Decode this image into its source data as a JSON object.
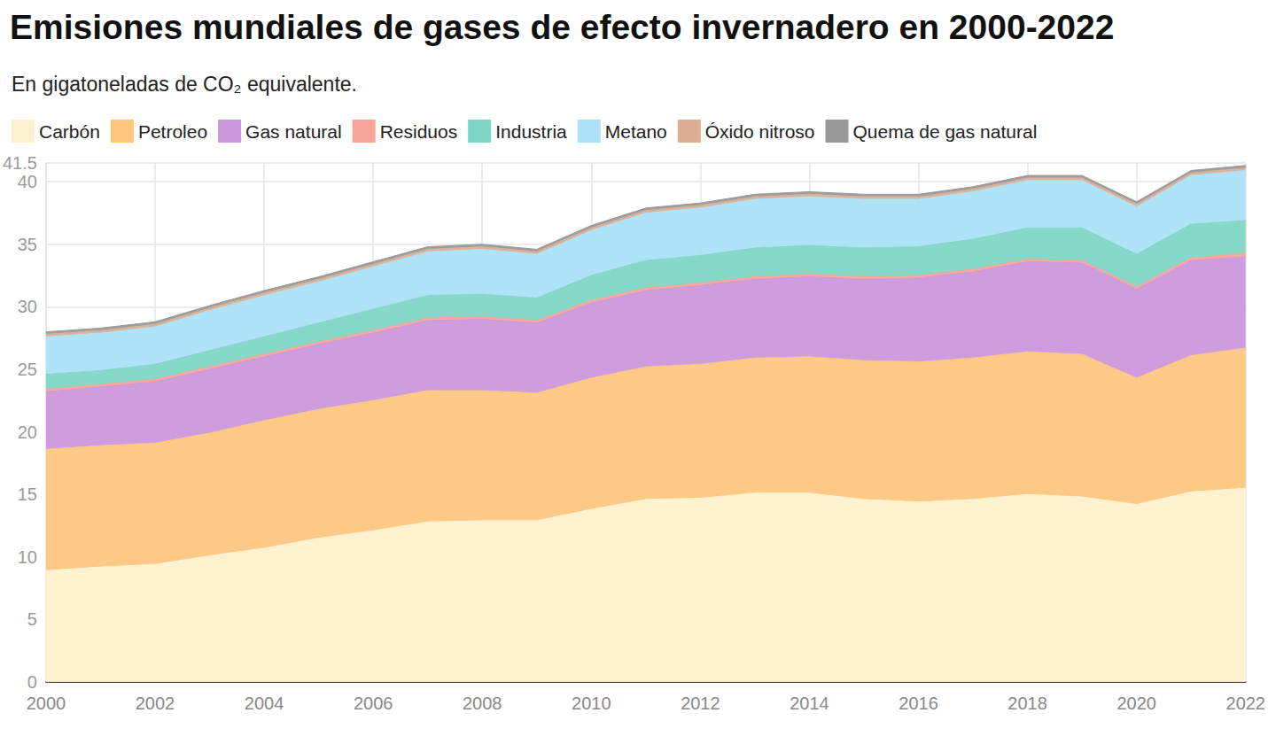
{
  "chart_data": {
    "type": "area",
    "title": "Emisiones mundiales de gases de efecto invernadero en 2000-2022",
    "subtitle": "En gigatoneladas de CO₂ equivalente.",
    "categories": [
      "2000",
      null,
      "2002",
      null,
      "2004",
      null,
      "2006",
      null,
      "2008",
      null,
      "2010",
      null,
      "2012",
      null,
      "2014",
      null,
      "2016",
      null,
      "2018",
      null,
      "2020",
      null,
      "2022"
    ],
    "stacked": true,
    "grid": true,
    "legend": "top",
    "ylim": [
      0,
      41.5
    ],
    "yticks": [
      0,
      5,
      10,
      15,
      20,
      25,
      30,
      35,
      40
    ],
    "series": [
      {
        "name": "Carbón",
        "color": "#fef1cf",
        "values": [
          8.9,
          9.2,
          9.4,
          10.1,
          10.7,
          11.5,
          12.1,
          12.8,
          12.9,
          12.9,
          13.8,
          14.6,
          14.7,
          15.1,
          15.1,
          14.6,
          14.4,
          14.6,
          15.0,
          14.8,
          14.2,
          15.2,
          15.5
        ]
      },
      {
        "name": "Petroleo",
        "color": "#fcc67f",
        "values": [
          9.7,
          9.7,
          9.7,
          9.8,
          10.2,
          10.3,
          10.4,
          10.5,
          10.4,
          10.2,
          10.5,
          10.6,
          10.7,
          10.8,
          10.9,
          11.1,
          11.2,
          11.3,
          11.4,
          11.4,
          10.1,
          10.9,
          11.2
        ]
      },
      {
        "name": "Gas natural",
        "color": "#cc98dc",
        "values": [
          4.6,
          4.7,
          4.9,
          5.1,
          5.1,
          5.2,
          5.4,
          5.6,
          5.7,
          5.6,
          6.0,
          6.1,
          6.3,
          6.3,
          6.4,
          6.5,
          6.7,
          6.9,
          7.2,
          7.3,
          7.1,
          7.6,
          7.3
        ]
      },
      {
        "name": "Residuos",
        "color": "#f7a598",
        "values": [
          0.2,
          0.2,
          0.2,
          0.2,
          0.2,
          0.2,
          0.2,
          0.2,
          0.2,
          0.2,
          0.2,
          0.2,
          0.2,
          0.2,
          0.2,
          0.2,
          0.2,
          0.2,
          0.2,
          0.2,
          0.2,
          0.2,
          0.3
        ]
      },
      {
        "name": "Industria",
        "color": "#7fd6c6",
        "values": [
          1.2,
          1.1,
          1.2,
          1.3,
          1.4,
          1.5,
          1.7,
          1.8,
          1.8,
          1.8,
          2.0,
          2.2,
          2.2,
          2.3,
          2.3,
          2.3,
          2.3,
          2.4,
          2.5,
          2.6,
          2.6,
          2.7,
          2.6
        ]
      },
      {
        "name": "Metano",
        "color": "#abe2f8",
        "values": [
          3.0,
          3.0,
          3.0,
          3.2,
          3.3,
          3.3,
          3.4,
          3.5,
          3.6,
          3.5,
          3.6,
          3.8,
          3.8,
          3.9,
          3.9,
          3.9,
          3.8,
          3.8,
          3.8,
          3.8,
          3.8,
          3.9,
          4.0
        ]
      },
      {
        "name": "Óxido nitroso",
        "color": "#dcae94",
        "values": [
          0.2,
          0.2,
          0.2,
          0.2,
          0.2,
          0.2,
          0.2,
          0.2,
          0.2,
          0.2,
          0.2,
          0.2,
          0.2,
          0.2,
          0.2,
          0.2,
          0.2,
          0.2,
          0.2,
          0.2,
          0.2,
          0.2,
          0.2
        ]
      },
      {
        "name": "Quema de gas natural",
        "color": "#999999",
        "values": [
          0.2,
          0.2,
          0.2,
          0.2,
          0.2,
          0.2,
          0.2,
          0.2,
          0.2,
          0.2,
          0.2,
          0.2,
          0.2,
          0.2,
          0.2,
          0.2,
          0.2,
          0.2,
          0.2,
          0.2,
          0.2,
          0.2,
          0.2
        ]
      }
    ]
  }
}
